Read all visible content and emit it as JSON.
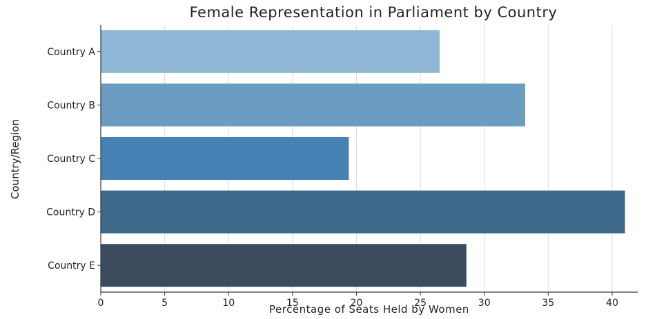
{
  "chart_data": {
    "type": "bar",
    "orientation": "horizontal",
    "title": "Female Representation in Parliament by Country",
    "xlabel": "Percentage of Seats Held by Women",
    "ylabel": "Country/Region",
    "categories": [
      "Country A",
      "Country B",
      "Country C",
      "Country D",
      "Country E"
    ],
    "values": [
      26.5,
      33.2,
      19.4,
      41.0,
      28.6
    ],
    "colors": [
      "#8fb6d5",
      "#6b9dc3",
      "#4682b4",
      "#3d6a8a",
      "#3a4c5e"
    ],
    "xlim": [
      0,
      42
    ],
    "xticks": [
      0,
      5,
      10,
      15,
      20,
      25,
      30,
      35,
      40
    ],
    "grid": "vertical"
  }
}
